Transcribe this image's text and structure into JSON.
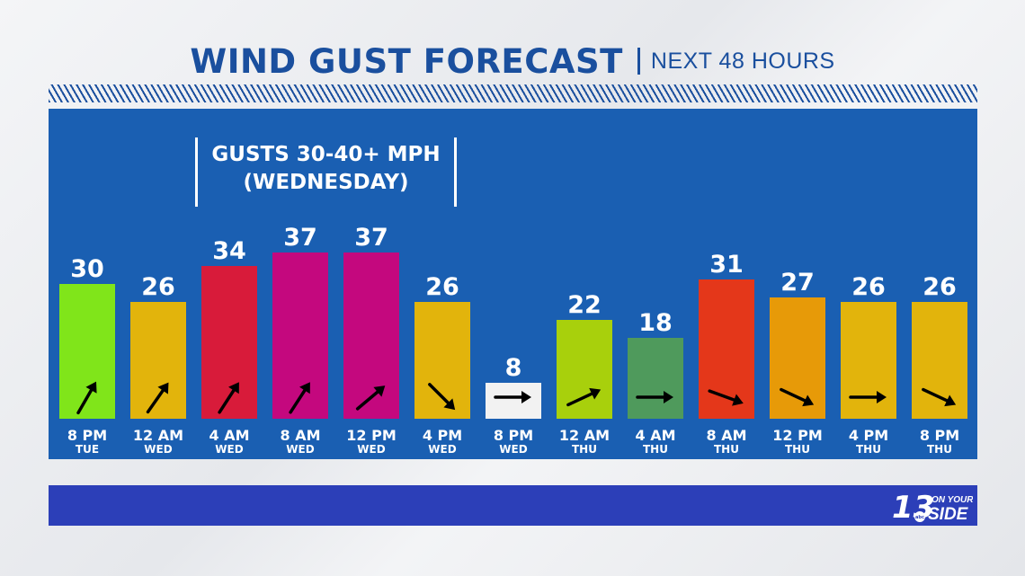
{
  "header": {
    "title": "WIND GUST FORECAST",
    "subtitle": "NEXT 48 HOURS"
  },
  "annotation": {
    "line1": "GUSTS 30-40+ MPH",
    "line2": "(WEDNESDAY)"
  },
  "logo": {
    "number": "13",
    "line1": "ON YOUR",
    "line2": "SIDE",
    "network": "abc"
  },
  "colors": {
    "title": "#1a4f9e",
    "panel": "#1a5fb2",
    "bottom_bar": "#2c3fb8"
  },
  "chart_data": {
    "type": "bar",
    "title": "WIND GUST FORECAST",
    "subtitle": "NEXT 48 HOURS",
    "unit": "MPH",
    "categories": [
      {
        "time": "8 PM",
        "day": "TUE"
      },
      {
        "time": "12 AM",
        "day": "WED"
      },
      {
        "time": "4 AM",
        "day": "WED"
      },
      {
        "time": "8 AM",
        "day": "WED"
      },
      {
        "time": "12 PM",
        "day": "WED"
      },
      {
        "time": "4 PM",
        "day": "WED"
      },
      {
        "time": "8 PM",
        "day": "WED"
      },
      {
        "time": "12 AM",
        "day": "THU"
      },
      {
        "time": "4 AM",
        "day": "THU"
      },
      {
        "time": "8 AM",
        "day": "THU"
      },
      {
        "time": "12 PM",
        "day": "THU"
      },
      {
        "time": "4 PM",
        "day": "THU"
      },
      {
        "time": "8 PM",
        "day": "THU"
      }
    ],
    "values": [
      30,
      26,
      34,
      37,
      37,
      26,
      8,
      22,
      18,
      31,
      27,
      26,
      26
    ],
    "bar_colors": [
      "#80e51a",
      "#e2b40c",
      "#d81b3a",
      "#c4087e",
      "#c4087e",
      "#e2b40c",
      "#f2f2f2",
      "#a8d00c",
      "#4f9a5c",
      "#e4371a",
      "#e79a08",
      "#e2b40c",
      "#e2b40c"
    ],
    "wind_direction_arrows": [
      "up-right",
      "up-right",
      "up-right",
      "up-right",
      "up-right",
      "down-right",
      "right",
      "up-right",
      "right",
      "down-right",
      "down-right",
      "right",
      "down-right"
    ],
    "arrow_angles_deg": [
      -60,
      -55,
      -57,
      -57,
      -40,
      45,
      0,
      -25,
      0,
      20,
      25,
      0,
      25
    ],
    "ylim": [
      0,
      40
    ],
    "grid": false,
    "legend": "none"
  }
}
